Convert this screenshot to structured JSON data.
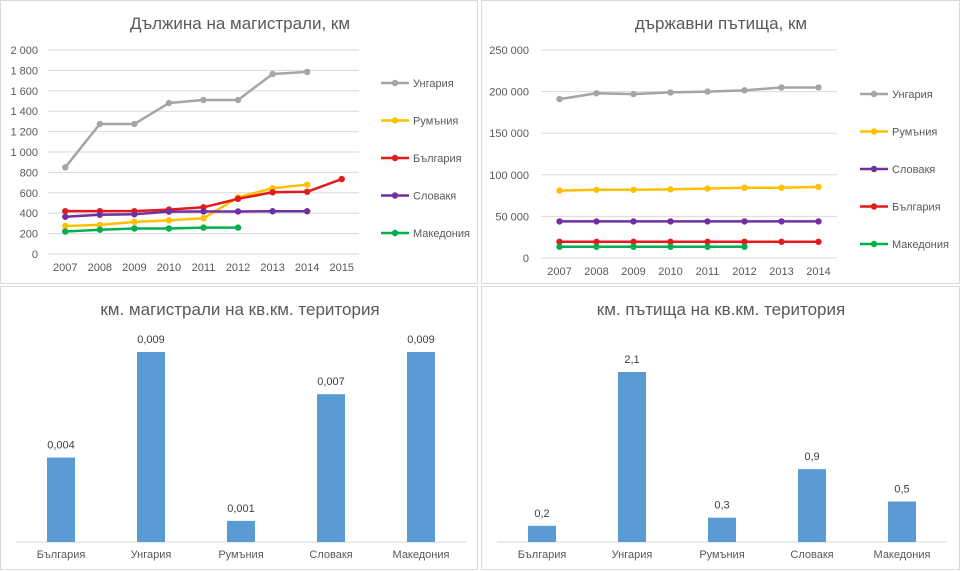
{
  "chart_data": [
    {
      "type": "line",
      "title": "Дължина на магистрали, км",
      "categories": [
        "2007",
        "2008",
        "2009",
        "2010",
        "2011",
        "2012",
        "2013",
        "2014",
        "2015"
      ],
      "ylim": [
        0,
        2000
      ],
      "y_ticks": [
        "0",
        "200",
        "400",
        "600",
        "800",
        "1 000",
        "1 200",
        "1 400",
        "1 600",
        "1 800",
        "2 000"
      ],
      "grid": true,
      "legend_position": "right",
      "series": [
        {
          "name": "Унгария",
          "color": "#a5a5a5",
          "values": [
            850,
            1275,
            1275,
            1480,
            1510,
            1510,
            1765,
            1785,
            null
          ]
        },
        {
          "name": "Румъния",
          "color": "#ffc000",
          "values": [
            275,
            285,
            315,
            330,
            350,
            555,
            645,
            680,
            null
          ]
        },
        {
          "name": "България",
          "color": "#e31a1c",
          "values": [
            420,
            420,
            420,
            435,
            458,
            541,
            605,
            610,
            735
          ]
        },
        {
          "name": "Словакя",
          "color": "#7030a0",
          "values": [
            365,
            385,
            390,
            415,
            417,
            417,
            419,
            419,
            null
          ]
        },
        {
          "name": "Македония",
          "color": "#00b050",
          "values": [
            220,
            238,
            250,
            250,
            259,
            259,
            null,
            null,
            null
          ]
        }
      ]
    },
    {
      "type": "line",
      "title": "държавни пътища, км",
      "categories": [
        "2007",
        "2008",
        "2009",
        "2010",
        "2011",
        "2012",
        "2013",
        "2014"
      ],
      "ylim": [
        0,
        250000
      ],
      "y_ticks": [
        "0",
        "50 000",
        "100 000",
        "150 000",
        "200 000",
        "250 000"
      ],
      "grid": true,
      "legend_position": "right",
      "series": [
        {
          "name": "Унгария",
          "color": "#a5a5a5",
          "values": [
            191000,
            198000,
            197000,
            199000,
            200000,
            201500,
            205000,
            205000
          ]
        },
        {
          "name": "Румъния",
          "color": "#ffc000",
          "values": [
            81000,
            82000,
            82000,
            82500,
            83500,
            84500,
            84500,
            85500
          ]
        },
        {
          "name": "Словакя",
          "color": "#7030a0",
          "values": [
            44000,
            44000,
            44000,
            44000,
            44000,
            44000,
            44000,
            44000
          ]
        },
        {
          "name": "България",
          "color": "#e31a1c",
          "values": [
            19500,
            19500,
            19500,
            19500,
            19500,
            19500,
            19500,
            19500
          ]
        },
        {
          "name": "Македония",
          "color": "#00b050",
          "values": [
            13500,
            13500,
            13500,
            13500,
            13500,
            13500,
            null,
            null
          ]
        }
      ]
    },
    {
      "type": "bar",
      "title": "км. магистрали на кв.км. територия",
      "categories": [
        "България",
        "Унгария",
        "Румъния",
        "Словакя",
        "Македония"
      ],
      "values": [
        0.004,
        0.009,
        0.001,
        0.007,
        0.009
      ],
      "labels": [
        "0,004",
        "0,009",
        "0,001",
        "0,007",
        "0,009"
      ],
      "bar_color": "#5b9bd5",
      "grid": false
    },
    {
      "type": "bar",
      "title": "км. пътища на кв.км. територия",
      "categories": [
        "България",
        "Унгария",
        "Румъния",
        "Словакя",
        "Македония"
      ],
      "values": [
        0.2,
        2.1,
        0.3,
        0.9,
        0.5
      ],
      "labels": [
        "0,2",
        "2,1",
        "0,3",
        "0,9",
        "0,5"
      ],
      "bar_color": "#5b9bd5",
      "grid": false
    }
  ]
}
